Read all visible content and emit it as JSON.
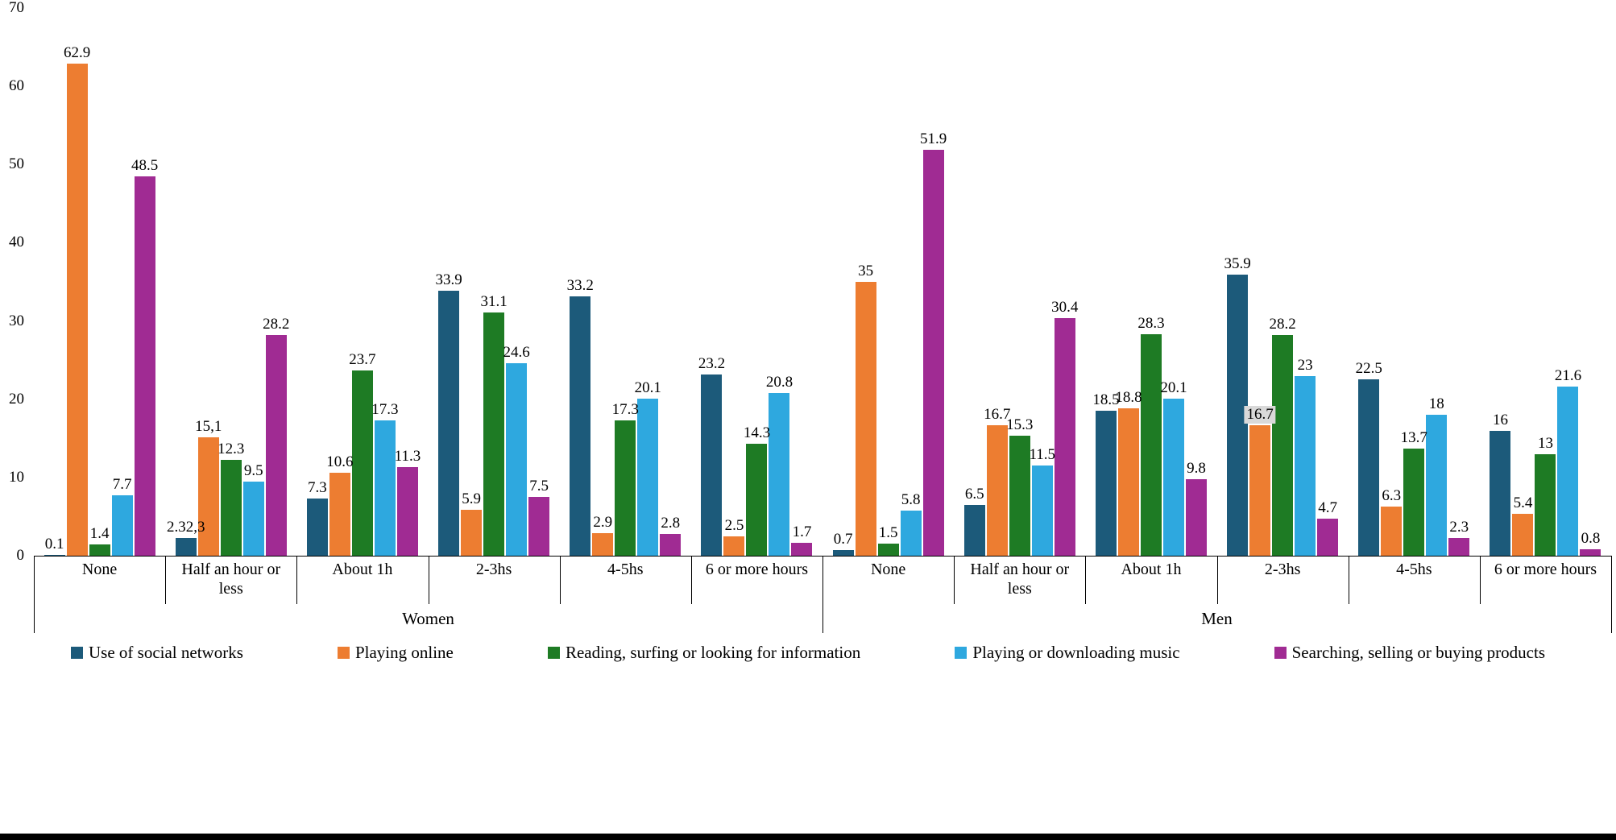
{
  "chart_data": {
    "type": "bar",
    "title": "",
    "xlabel": "",
    "ylabel": "",
    "ylim": [
      0,
      70
    ],
    "yticks": [
      0,
      10,
      20,
      30,
      40,
      50,
      60,
      70
    ],
    "grid": false,
    "legend_position": "bottom",
    "series_names": [
      "Use of social networks",
      "Playing online",
      "Reading, surfing or looking for information",
      "Playing or downloading music",
      "Searching, selling or buying products"
    ],
    "series_colors": [
      "#1C5A7A",
      "#ED7D31",
      "#1E7B24",
      "#2EA8DF",
      "#A02B93"
    ],
    "groups": [
      {
        "label": "Women",
        "categories": [
          {
            "label": "None",
            "values": [
              0.1,
              62.9,
              1.4,
              7.7,
              48.5
            ],
            "labels": [
              "0.1",
              "62.9",
              "1.4",
              "7.7",
              "48.5"
            ]
          },
          {
            "label": "Half an hour or less",
            "values": [
              2.3,
              15.1,
              12.3,
              9.5,
              28.2
            ],
            "labels": [
              "2.32,3",
              "15,1",
              "12.3",
              "9.5",
              "28.2"
            ]
          },
          {
            "label": "About 1h",
            "values": [
              7.3,
              10.6,
              23.7,
              17.3,
              11.3
            ],
            "labels": [
              "7.3",
              "10.6",
              "23.7",
              "17.3",
              "11.3"
            ]
          },
          {
            "label": "2-3hs",
            "values": [
              33.9,
              5.9,
              31.1,
              24.6,
              7.5
            ],
            "labels": [
              "33.9",
              "5.9",
              "31.1",
              "24.6",
              "7.5"
            ]
          },
          {
            "label": "4-5hs",
            "values": [
              33.2,
              2.9,
              17.3,
              20.1,
              2.8
            ],
            "labels": [
              "33.2",
              "2.9",
              "17.3",
              "20.1",
              "2.8"
            ]
          },
          {
            "label": "6 or more hours",
            "values": [
              23.2,
              2.5,
              14.3,
              20.8,
              1.7
            ],
            "labels": [
              "23.2",
              "2.5",
              "14.3",
              "20.8",
              "1.7"
            ]
          }
        ]
      },
      {
        "label": "Men",
        "categories": [
          {
            "label": "None",
            "values": [
              0.7,
              35,
              1.5,
              5.8,
              51.9
            ],
            "labels": [
              "0.7",
              "35",
              "1.5",
              "5.8",
              "51.9"
            ]
          },
          {
            "label": "Half an hour or less",
            "values": [
              6.5,
              16.7,
              15.3,
              11.5,
              30.4
            ],
            "labels": [
              "6.5",
              "16.7",
              "15.3",
              "11.5",
              "30.4"
            ]
          },
          {
            "label": "About 1h",
            "values": [
              18.5,
              18.8,
              28.3,
              20.1,
              9.8
            ],
            "labels": [
              "18.5",
              "18.8",
              "28.3",
              "20.1",
              "9.8"
            ]
          },
          {
            "label": "2-3hs",
            "values": [
              35.9,
              16.7,
              28.2,
              23,
              4.7
            ],
            "labels": [
              "35.9",
              "16.7",
              "28.2",
              "23",
              "4.7"
            ],
            "highlight": [
              0,
              1,
              0,
              0,
              0
            ]
          },
          {
            "label": "4-5hs",
            "values": [
              22.5,
              6.3,
              13.7,
              18,
              2.3
            ],
            "labels": [
              "22.5",
              "6.3",
              "13.7",
              "18",
              "2.3"
            ]
          },
          {
            "label": "6 or more hours",
            "values": [
              16,
              5.4,
              13,
              21.6,
              0.8
            ],
            "labels": [
              "16",
              "5.4",
              "13",
              "21.6",
              "0.8"
            ]
          }
        ]
      }
    ]
  }
}
